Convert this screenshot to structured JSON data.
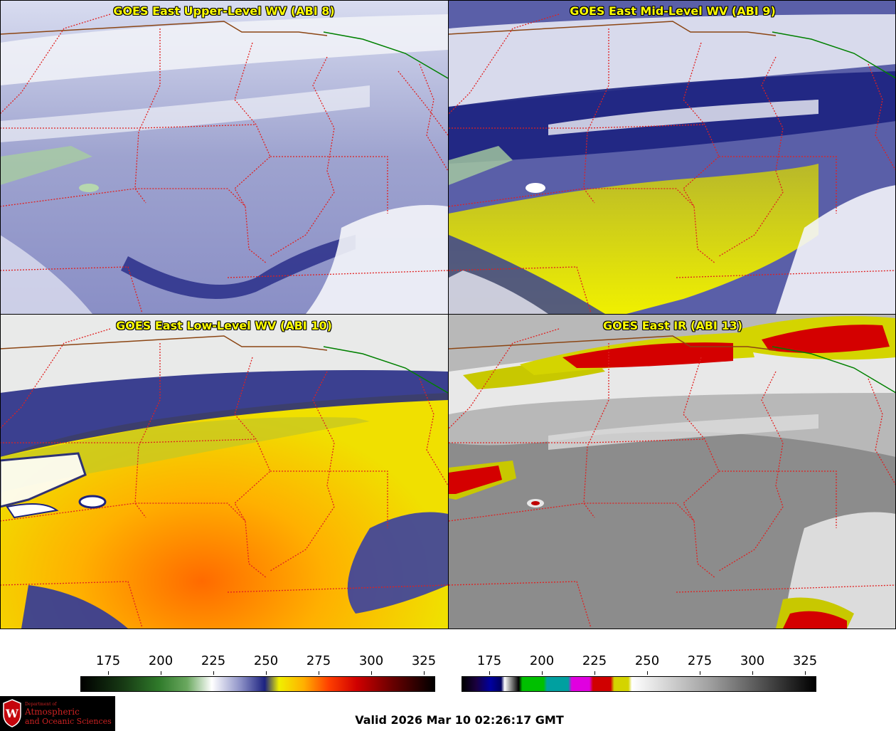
{
  "panels": [
    {
      "title": "GOES East Upper-Level WV (ABI 8)",
      "product": "upper-wv"
    },
    {
      "title": "GOES East Mid-Level WV (ABI 9)",
      "product": "mid-wv"
    },
    {
      "title": "GOES East Low-Level WV (ABI 10)",
      "product": "low-wv"
    },
    {
      "title": "GOES East IR (ABI 13)",
      "product": "ir"
    }
  ],
  "colorbars": {
    "wv": {
      "ticks": [
        "175",
        "200",
        "225",
        "250",
        "275",
        "300",
        "325"
      ]
    },
    "ir": {
      "ticks": [
        "175",
        "200",
        "225",
        "250",
        "275",
        "300",
        "325"
      ]
    }
  },
  "logo": {
    "line1": "Department of",
    "line2": "Atmospheric",
    "line3": "and Oceanic Sciences",
    "shield_letter": "W"
  },
  "valid_time": "Valid 2026 Mar 10 02:26:17 GMT",
  "colors": {
    "title": "#ffff00",
    "state_borders": "#e02020",
    "country_border": "#8b4513",
    "canada_border": "#008000"
  }
}
